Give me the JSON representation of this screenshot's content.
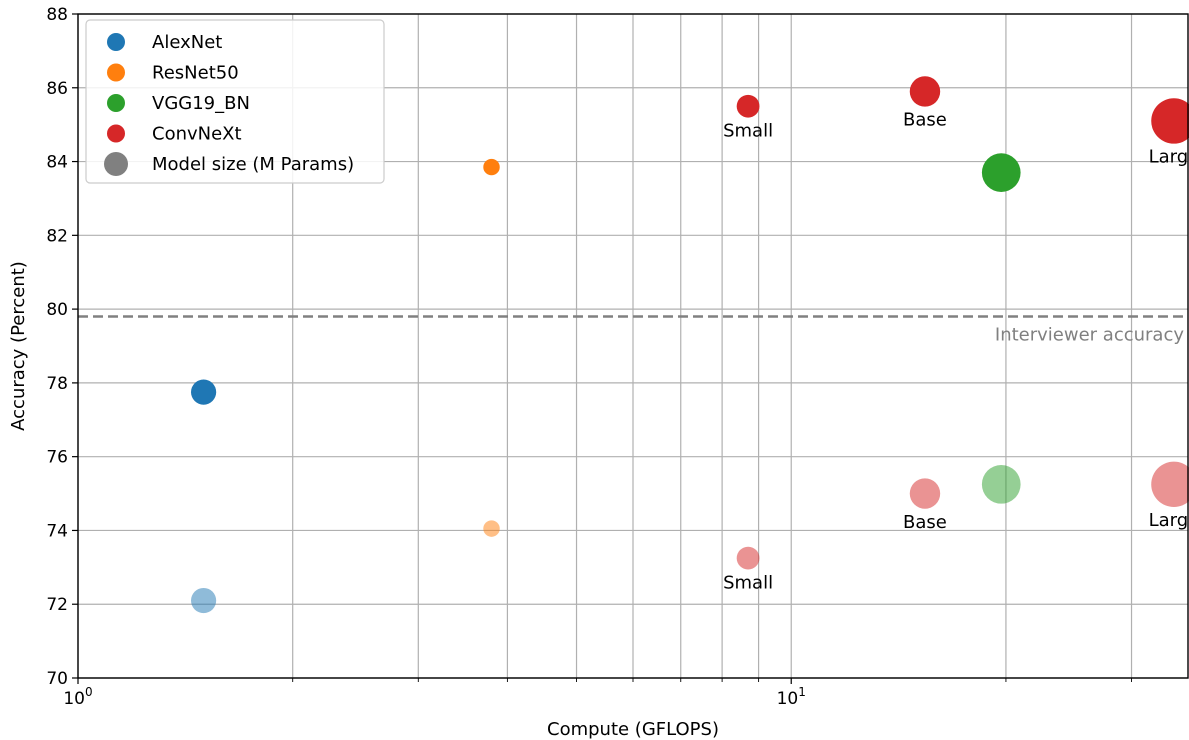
{
  "chart_data": {
    "type": "scatter",
    "xlabel": "Compute (GFLOPS)",
    "ylabel": "Accuracy (Percent)",
    "xscale": "log",
    "xlim": [
      1,
      36
    ],
    "ylim": [
      70,
      88
    ],
    "x_ticks": [
      {
        "value": 1,
        "base": "10",
        "exp": "0"
      },
      {
        "value": 10,
        "base": "10",
        "exp": "1"
      }
    ],
    "y_ticks": [
      70,
      72,
      74,
      76,
      78,
      80,
      82,
      84,
      86,
      88
    ],
    "grid": true,
    "legend_position": "upper-left",
    "legend": [
      {
        "label": "AlexNet",
        "color": "#1f77b4"
      },
      {
        "label": "ResNet50",
        "color": "#ff7f0e"
      },
      {
        "label": "VGG19_BN",
        "color": "#2ca02c"
      },
      {
        "label": "ConvNeXt",
        "color": "#d62728"
      },
      {
        "label": "Model size (M Params)",
        "color": "#808080"
      }
    ],
    "reference_line": {
      "y": 79.8,
      "label": "Interviewer accuracy",
      "color": "#808080",
      "style": "dashed"
    },
    "series": [
      {
        "name": "AlexNet",
        "color": "#1f77b4",
        "points": [
          {
            "x": 1.5,
            "y": 77.75,
            "size": 61,
            "alpha": 1.0,
            "label": ""
          },
          {
            "x": 1.5,
            "y": 72.1,
            "size": 61,
            "alpha": 0.5,
            "label": ""
          }
        ]
      },
      {
        "name": "ResNet50",
        "color": "#ff7f0e",
        "points": [
          {
            "x": 3.8,
            "y": 83.85,
            "size": 26,
            "alpha": 1.0,
            "label": ""
          },
          {
            "x": 3.8,
            "y": 74.05,
            "size": 26,
            "alpha": 0.5,
            "label": ""
          }
        ]
      },
      {
        "name": "VGG19_BN",
        "color": "#2ca02c",
        "points": [
          {
            "x": 19.7,
            "y": 83.7,
            "size": 144,
            "alpha": 1.0,
            "label": ""
          },
          {
            "x": 19.7,
            "y": 75.25,
            "size": 144,
            "alpha": 0.5,
            "label": ""
          }
        ]
      },
      {
        "name": "ConvNeXt",
        "color": "#d62728",
        "points": [
          {
            "x": 8.7,
            "y": 85.5,
            "size": 50,
            "alpha": 1.0,
            "label": "Small"
          },
          {
            "x": 15.4,
            "y": 85.9,
            "size": 89,
            "alpha": 1.0,
            "label": "Base"
          },
          {
            "x": 34.4,
            "y": 85.1,
            "size": 198,
            "alpha": 1.0,
            "label": "Large"
          },
          {
            "x": 8.7,
            "y": 73.25,
            "size": 50,
            "alpha": 0.5,
            "label": "Small"
          },
          {
            "x": 15.4,
            "y": 75.0,
            "size": 89,
            "alpha": 0.5,
            "label": "Base"
          },
          {
            "x": 34.4,
            "y": 75.25,
            "size": 198,
            "alpha": 0.5,
            "label": "Large"
          }
        ]
      }
    ]
  }
}
